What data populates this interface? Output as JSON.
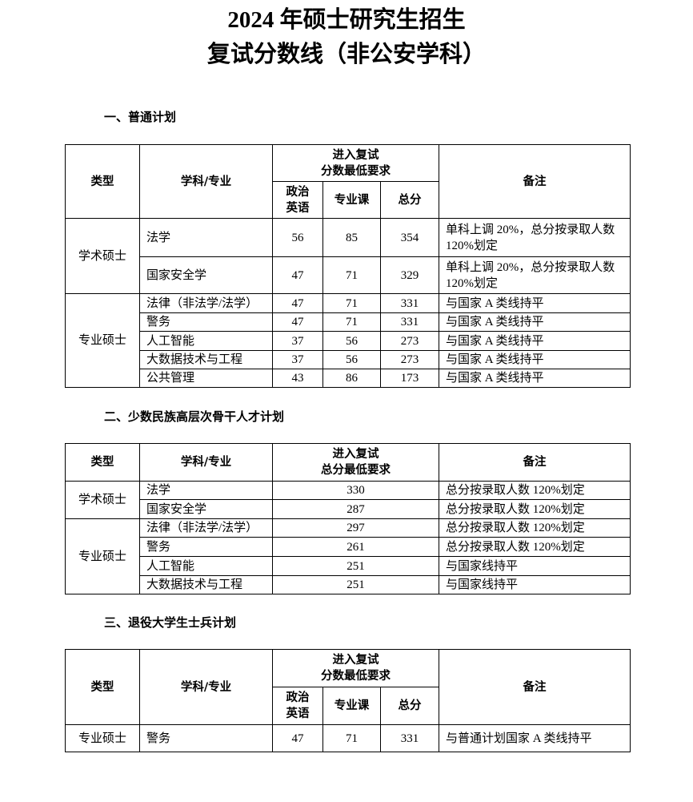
{
  "title": {
    "line1": "2024 年硕士研究生招生",
    "line2": "复试分数线（非公安学科）"
  },
  "headers": {
    "type": "类型",
    "major": "学科/专业",
    "req": "进入复试",
    "req2": "分数最低要求",
    "req_total2": "总分最低要求",
    "politics": "政治英语",
    "politics1": "政治",
    "politics2": "英语",
    "course": "专业课",
    "total": "总分",
    "note": "备注"
  },
  "section1": {
    "heading": "一、普通计划",
    "groups": [
      {
        "type": "学术硕士",
        "rows": [
          {
            "major": "法学",
            "politics": "56",
            "course": "85",
            "total": "354",
            "note": "单科上调 20%，总分按录取人数 120%划定"
          },
          {
            "major": "国家安全学",
            "politics": "47",
            "course": "71",
            "total": "329",
            "note": "单科上调 20%，总分按录取人数 120%划定"
          }
        ]
      },
      {
        "type": "专业硕士",
        "rows": [
          {
            "major": "法律（非法学/法学）",
            "politics": "47",
            "course": "71",
            "total": "331",
            "note": "与国家 A 类线持平"
          },
          {
            "major": "警务",
            "politics": "47",
            "course": "71",
            "total": "331",
            "note": "与国家 A 类线持平"
          },
          {
            "major": "人工智能",
            "politics": "37",
            "course": "56",
            "total": "273",
            "note": "与国家 A 类线持平"
          },
          {
            "major": "大数据技术与工程",
            "politics": "37",
            "course": "56",
            "total": "273",
            "note": "与国家 A 类线持平"
          },
          {
            "major": "公共管理",
            "politics": "43",
            "course": "86",
            "total": "173",
            "note": "与国家 A 类线持平"
          }
        ]
      }
    ]
  },
  "section2": {
    "heading": "二、少数民族高层次骨干人才计划",
    "groups": [
      {
        "type": "学术硕士",
        "rows": [
          {
            "major": "法学",
            "total": "330",
            "note": "总分按录取人数 120%划定"
          },
          {
            "major": "国家安全学",
            "total": "287",
            "note": "总分按录取人数 120%划定"
          }
        ]
      },
      {
        "type": "专业硕士",
        "rows": [
          {
            "major": "法律（非法学/法学）",
            "total": "297",
            "note": "总分按录取人数 120%划定"
          },
          {
            "major": "警务",
            "total": "261",
            "note": "总分按录取人数 120%划定"
          },
          {
            "major": "人工智能",
            "total": "251",
            "note": "与国家线持平"
          },
          {
            "major": "大数据技术与工程",
            "total": "251",
            "note": "与国家线持平"
          }
        ]
      }
    ]
  },
  "section3": {
    "heading": "三、退役大学生士兵计划",
    "groups": [
      {
        "type": "专业硕士",
        "rows": [
          {
            "major": "警务",
            "politics": "47",
            "course": "71",
            "total": "331",
            "note": "与普通计划国家 A 类线持平"
          }
        ]
      }
    ]
  }
}
